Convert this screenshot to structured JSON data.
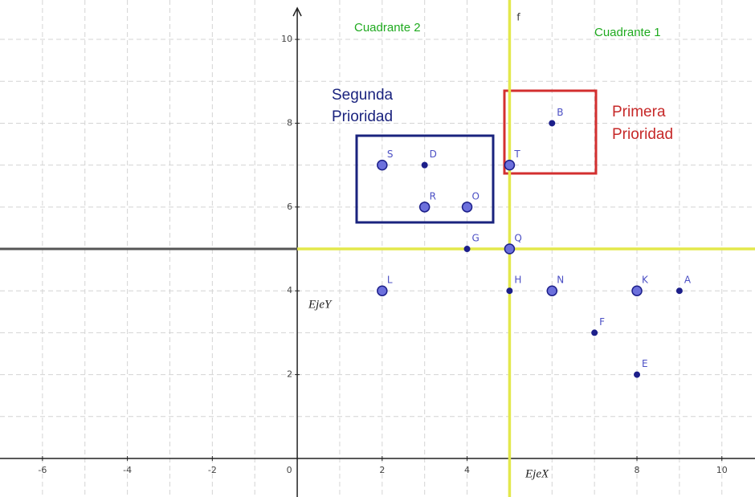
{
  "chart_data": {
    "type": "scatter",
    "xlim": [
      -7,
      10.78
    ],
    "ylim": [
      -0.92,
      10.94
    ],
    "xticks": [
      -6,
      -4,
      -2,
      0,
      2,
      4,
      8,
      10
    ],
    "yticks": [
      2,
      4,
      6,
      8,
      10
    ],
    "xgrid": [
      -6,
      -5,
      -4,
      -3,
      -2,
      -1,
      1,
      2,
      3,
      4,
      5,
      6,
      7,
      8,
      9,
      10
    ],
    "ygrid": [
      1,
      2,
      3,
      4,
      5,
      6,
      7,
      8,
      9,
      10
    ],
    "x_label": "EjeX",
    "y_label": "EjeY",
    "annotations": {
      "quadrant_2": "Cuadrante 2",
      "quadrant_1": "Cuadrante 1",
      "second_priority": [
        "Segunda",
        "Prioridad"
      ],
      "first_priority": [
        "Primera",
        "Prioridad"
      ]
    },
    "vlines": [
      {
        "name": "f",
        "x": 5,
        "color": "#e3e84c"
      }
    ],
    "hlines": [
      {
        "y": 5,
        "x_from": 0,
        "color": "#e3e84c"
      }
    ],
    "color": "#1c1f8a",
    "points": [
      {
        "label": "B",
        "x": 6,
        "y": 8,
        "style": "small"
      },
      {
        "label": "T",
        "x": 5,
        "y": 7,
        "style": "large"
      },
      {
        "label": "S",
        "x": 2,
        "y": 7,
        "style": "large"
      },
      {
        "label": "D",
        "x": 3,
        "y": 7,
        "style": "small"
      },
      {
        "label": "R",
        "x": 3,
        "y": 6,
        "style": "large"
      },
      {
        "label": "O",
        "x": 4,
        "y": 6,
        "style": "large"
      },
      {
        "label": "G",
        "x": 4,
        "y": 5,
        "style": "small"
      },
      {
        "label": "Q",
        "x": 5,
        "y": 5,
        "style": "large"
      },
      {
        "label": "L",
        "x": 2,
        "y": 4,
        "style": "large"
      },
      {
        "label": "H",
        "x": 5,
        "y": 4,
        "style": "small"
      },
      {
        "label": "N",
        "x": 6,
        "y": 4,
        "style": "large"
      },
      {
        "label": "K",
        "x": 8,
        "y": 4,
        "style": "large"
      },
      {
        "label": "A",
        "x": 9,
        "y": 4,
        "style": "small"
      },
      {
        "label": "F",
        "x": 7,
        "y": 3,
        "style": "small"
      },
      {
        "label": "E",
        "x": 8,
        "y": 2,
        "style": "small"
      }
    ]
  }
}
